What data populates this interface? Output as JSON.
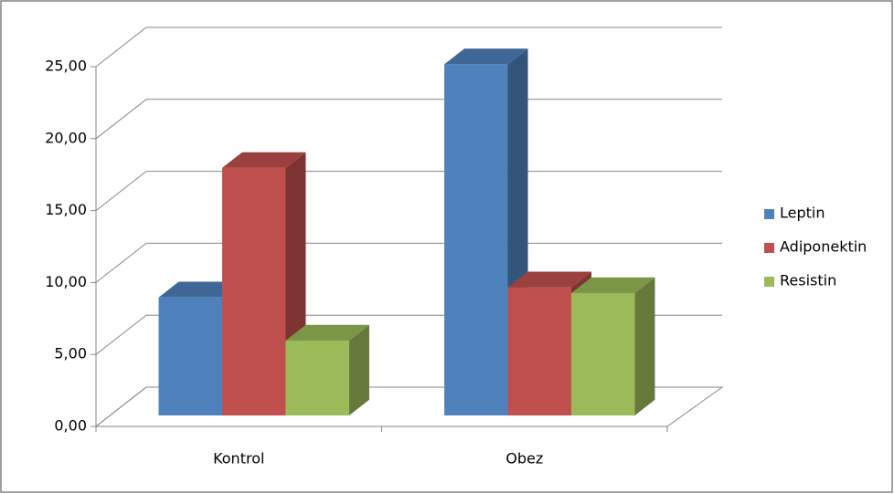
{
  "chart_data": {
    "type": "bar3d",
    "categories": [
      "Kontrol",
      "Obez"
    ],
    "series": [
      {
        "name": "Leptin",
        "color": "#4f81bd",
        "values": [
          8.2,
          24.4
        ]
      },
      {
        "name": "Adiponektin",
        "color": "#c0504d",
        "values": [
          17.2,
          8.9
        ]
      },
      {
        "name": "Resistin",
        "color": "#9bbb59",
        "values": [
          5.2,
          8.5
        ]
      }
    ],
    "ylim": [
      0,
      25
    ],
    "yticks": [
      {
        "value": 0,
        "label": "0,00"
      },
      {
        "value": 5,
        "label": "5,00"
      },
      {
        "value": 10,
        "label": "10,00"
      },
      {
        "value": 15,
        "label": "15,00"
      },
      {
        "value": 20,
        "label": "20,00"
      },
      {
        "value": 25,
        "label": "25,00"
      }
    ],
    "grid": true,
    "legend": "right"
  }
}
